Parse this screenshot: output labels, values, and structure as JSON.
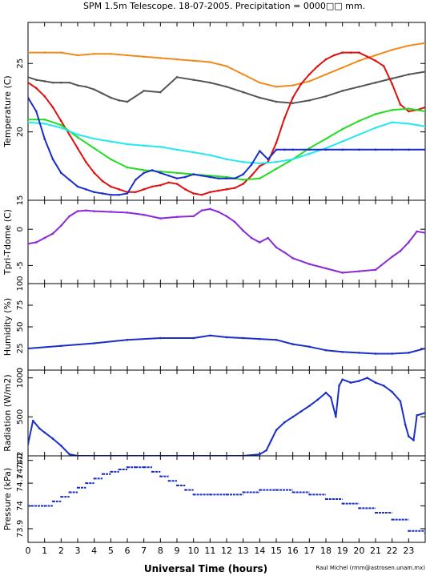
{
  "title": "SPM 1.5m Telescope. 18-07-2005. Precipitation = 0000□□ mm.",
  "xlabel": "Universal Time (hours)",
  "credit": "Raul Michel  (rmm@astrosen.unam.mx)",
  "x_ticks": [
    "0",
    "1",
    "2",
    "3",
    "4",
    "5",
    "6",
    "7",
    "8",
    "9",
    "10",
    "11",
    "12",
    "13",
    "14",
    "15",
    "16",
    "17",
    "18",
    "19",
    "20",
    "21",
    "22",
    "23"
  ],
  "colors": {
    "orange": "#f08c1e",
    "gray": "#555555",
    "red": "#dd1111",
    "green": "#22dd22",
    "cyan": "#22e8f0",
    "blue": "#1a2ec8",
    "purple": "#8a2ad8"
  },
  "chart_data": [
    {
      "type": "line",
      "ylabel": "Temperature (C)",
      "xlim": [
        0,
        24
      ],
      "ylim": [
        15,
        28
      ],
      "yticks": [
        15,
        20,
        25
      ],
      "series": [
        {
          "color": "orange",
          "x": [
            0,
            1,
            2,
            3,
            4,
            5,
            6,
            7,
            8,
            9,
            10,
            11,
            12,
            13,
            14,
            15,
            16,
            17,
            18,
            19,
            20,
            21,
            22,
            23,
            24
          ],
          "values": [
            25.8,
            25.8,
            25.8,
            25.6,
            25.7,
            25.7,
            25.6,
            25.5,
            25.4,
            25.3,
            25.2,
            25.1,
            24.8,
            24.2,
            23.6,
            23.3,
            23.4,
            23.7,
            24.2,
            24.7,
            25.2,
            25.6,
            26.0,
            26.3,
            26.5
          ]
        },
        {
          "color": "gray",
          "x": [
            0,
            0.5,
            1,
            1.5,
            2,
            2.5,
            3,
            3.5,
            4,
            4.5,
            5,
            5.5,
            6,
            7,
            8,
            9,
            10,
            11,
            12,
            13,
            14,
            15,
            16,
            17,
            18,
            19,
            20,
            21,
            22,
            23,
            24
          ],
          "values": [
            24,
            23.8,
            23.7,
            23.6,
            23.6,
            23.6,
            23.4,
            23.3,
            23.1,
            22.8,
            22.5,
            22.3,
            22.2,
            23.0,
            22.9,
            24.0,
            23.8,
            23.6,
            23.3,
            22.9,
            22.5,
            22.2,
            22.1,
            22.3,
            22.6,
            23.0,
            23.3,
            23.6,
            23.9,
            24.2,
            24.4
          ]
        },
        {
          "color": "red",
          "x": [
            0,
            0.5,
            1,
            1.5,
            2,
            2.5,
            3,
            3.5,
            4,
            4.5,
            5,
            5.5,
            6,
            6.5,
            7,
            7.5,
            8,
            8.5,
            9,
            9.5,
            10,
            10.5,
            11,
            11.5,
            12,
            12.5,
            13,
            13.5,
            14,
            14.5,
            15,
            15.5,
            16,
            16.5,
            17,
            17.5,
            18,
            18.5,
            19,
            19.5,
            20,
            20.5,
            21,
            21.5,
            22,
            22.5,
            23,
            23.5,
            24
          ],
          "values": [
            23.6,
            23.2,
            22.6,
            21.8,
            20.8,
            19.8,
            18.8,
            17.8,
            17.0,
            16.4,
            16.0,
            15.8,
            15.6,
            15.6,
            15.8,
            16.0,
            16.1,
            16.3,
            16.2,
            15.8,
            15.5,
            15.4,
            15.6,
            15.7,
            15.8,
            15.9,
            16.2,
            16.8,
            17.5,
            17.8,
            19.2,
            21.0,
            22.5,
            23.5,
            24.2,
            24.8,
            25.3,
            25.6,
            25.8,
            25.8,
            25.8,
            25.5,
            25.2,
            24.8,
            23.5,
            22.0,
            21.5,
            21.6,
            21.8
          ]
        },
        {
          "color": "green",
          "x": [
            0,
            1,
            2,
            3,
            4,
            5,
            6,
            7,
            8,
            9,
            10,
            11,
            12,
            13,
            14,
            15,
            16,
            17,
            18,
            19,
            20,
            21,
            22,
            23,
            24
          ],
          "values": [
            20.9,
            20.9,
            20.5,
            19.6,
            18.8,
            18.0,
            17.4,
            17.2,
            17.1,
            17.0,
            16.9,
            16.8,
            16.7,
            16.5,
            16.6,
            17.3,
            18.0,
            18.8,
            19.5,
            20.2,
            20.8,
            21.3,
            21.6,
            21.7,
            21.5
          ]
        },
        {
          "color": "cyan",
          "x": [
            0,
            1,
            2,
            3,
            4,
            5,
            6,
            7,
            8,
            9,
            10,
            11,
            12,
            13,
            14,
            15,
            16,
            17,
            18,
            19,
            20,
            21,
            22,
            23,
            24
          ],
          "values": [
            20.7,
            20.6,
            20.3,
            19.8,
            19.5,
            19.3,
            19.1,
            19.0,
            18.9,
            18.7,
            18.5,
            18.3,
            18.0,
            17.8,
            17.7,
            17.8,
            18.0,
            18.4,
            18.8,
            19.3,
            19.8,
            20.3,
            20.7,
            20.6,
            20.4
          ]
        },
        {
          "color": "blue",
          "x": [
            0,
            0.5,
            1,
            1.5,
            2,
            2.5,
            3,
            3.5,
            4,
            4.5,
            5,
            5.5,
            6,
            6.5,
            7,
            7.5,
            8,
            8.5,
            9,
            9.5,
            10,
            10.5,
            11,
            11.5,
            12,
            12.5,
            13,
            13.5,
            14,
            14.5,
            15,
            15.5,
            16,
            17,
            18,
            19,
            20,
            21,
            22,
            23,
            24
          ],
          "values": [
            22.5,
            21.5,
            19.5,
            18.0,
            17.0,
            16.5,
            16.0,
            15.8,
            15.6,
            15.5,
            15.4,
            15.4,
            15.5,
            16.5,
            17.0,
            17.2,
            17.0,
            16.8,
            16.6,
            16.7,
            16.9,
            16.8,
            16.7,
            16.6,
            16.6,
            16.6,
            16.9,
            17.6,
            18.6,
            18.0,
            18.7,
            18.7,
            18.7,
            18.7,
            18.7,
            18.7,
            18.7,
            18.7,
            18.7,
            18.7,
            18.7
          ]
        }
      ]
    },
    {
      "type": "line",
      "ylabel": "Tpri-Tdome (C)",
      "xlim": [
        0,
        24
      ],
      "ylim": [
        -7.5,
        4
      ],
      "yticks": [
        -5,
        0
      ],
      "series": [
        {
          "color": "purple",
          "x": [
            0,
            0.5,
            1,
            1.5,
            2,
            2.5,
            3,
            3.5,
            4,
            5,
            6,
            7,
            8,
            9,
            10,
            10.5,
            11,
            11.5,
            12,
            12.5,
            13,
            13.5,
            14,
            14.5,
            15,
            15.5,
            16,
            17,
            18,
            19,
            20,
            21,
            22,
            22.5,
            23,
            23.5,
            24
          ],
          "values": [
            -2.0,
            -1.8,
            -1.2,
            -0.6,
            0.5,
            1.8,
            2.5,
            2.6,
            2.5,
            2.4,
            2.3,
            2.0,
            1.5,
            1.7,
            1.8,
            2.6,
            2.8,
            2.4,
            1.8,
            1.0,
            -0.2,
            -1.2,
            -1.8,
            -1.2,
            -2.5,
            -3.2,
            -4.0,
            -4.8,
            -5.4,
            -6.0,
            -5.8,
            -5.6,
            -3.8,
            -3.0,
            -1.8,
            -0.3,
            -0.5
          ]
        }
      ]
    },
    {
      "type": "line",
      "ylabel": "Humidity (%)",
      "xlim": [
        0,
        24
      ],
      "ylim": [
        0,
        100
      ],
      "yticks": [
        0,
        25,
        50,
        75,
        100
      ],
      "series": [
        {
          "color": "blue",
          "x": [
            0,
            2,
            4,
            6,
            8,
            10,
            11,
            12,
            13,
            14,
            15,
            16,
            17,
            18,
            19,
            20,
            21,
            22,
            23,
            24
          ],
          "values": [
            25,
            28,
            31,
            35,
            37,
            37,
            40,
            38,
            37,
            36,
            35,
            30,
            27,
            23,
            21,
            20,
            19,
            19,
            20,
            25
          ]
        }
      ]
    },
    {
      "type": "line",
      "ylabel": "Radiation (W/m2)",
      "xlim": [
        0,
        24
      ],
      "ylim": [
        0,
        1100
      ],
      "yticks": [
        0,
        500,
        1000
      ],
      "series": [
        {
          "color": "blue",
          "x": [
            0,
            0.3,
            0.7,
            1,
            1.5,
            2,
            2.5,
            3,
            4,
            6,
            8,
            10,
            12,
            13,
            14,
            14.4,
            14.7,
            15,
            15.5,
            16,
            16.5,
            17,
            17.5,
            18,
            18.3,
            18.6,
            18.8,
            19,
            19.5,
            20,
            20.5,
            21,
            21.5,
            22,
            22.5,
            22.8,
            23,
            23.3,
            23.5,
            24
          ],
          "values": [
            150,
            450,
            350,
            300,
            220,
            130,
            20,
            0,
            0,
            0,
            0,
            0,
            0,
            0,
            20,
            70,
            200,
            330,
            430,
            500,
            570,
            640,
            720,
            810,
            750,
            500,
            900,
            980,
            940,
            960,
            1000,
            940,
            900,
            820,
            700,
            400,
            250,
            200,
            520,
            550
          ]
        }
      ]
    },
    {
      "type": "scatter",
      "ylabel": "Pressure (kPa)",
      "xlim": [
        0,
        24
      ],
      "ylim": [
        73.84,
        74.22
      ],
      "yticks": [
        73.9,
        74,
        74.1,
        74.2
      ],
      "yticklabels": [
        "73.9",
        "74",
        "74.1",
        "74.2"
      ],
      "extra_tick": "74.17",
      "series": [
        {
          "color": "blue",
          "x": [
            0,
            1,
            1.5,
            2,
            2.5,
            3,
            3.5,
            4,
            4.5,
            5,
            5.5,
            6,
            6.5,
            7,
            7.5,
            8,
            8.5,
            9,
            9.5,
            10,
            11,
            12,
            13,
            14,
            15,
            16,
            17,
            18,
            19,
            20,
            21,
            22,
            23,
            24
          ],
          "values": [
            74.0,
            74.0,
            74.02,
            74.04,
            74.06,
            74.08,
            74.1,
            74.12,
            74.14,
            74.15,
            74.16,
            74.17,
            74.17,
            74.17,
            74.15,
            74.13,
            74.11,
            74.09,
            74.07,
            74.05,
            74.05,
            74.05,
            74.06,
            74.07,
            74.07,
            74.06,
            74.05,
            74.03,
            74.01,
            73.99,
            73.97,
            73.94,
            73.89,
            73.88
          ]
        }
      ]
    }
  ]
}
